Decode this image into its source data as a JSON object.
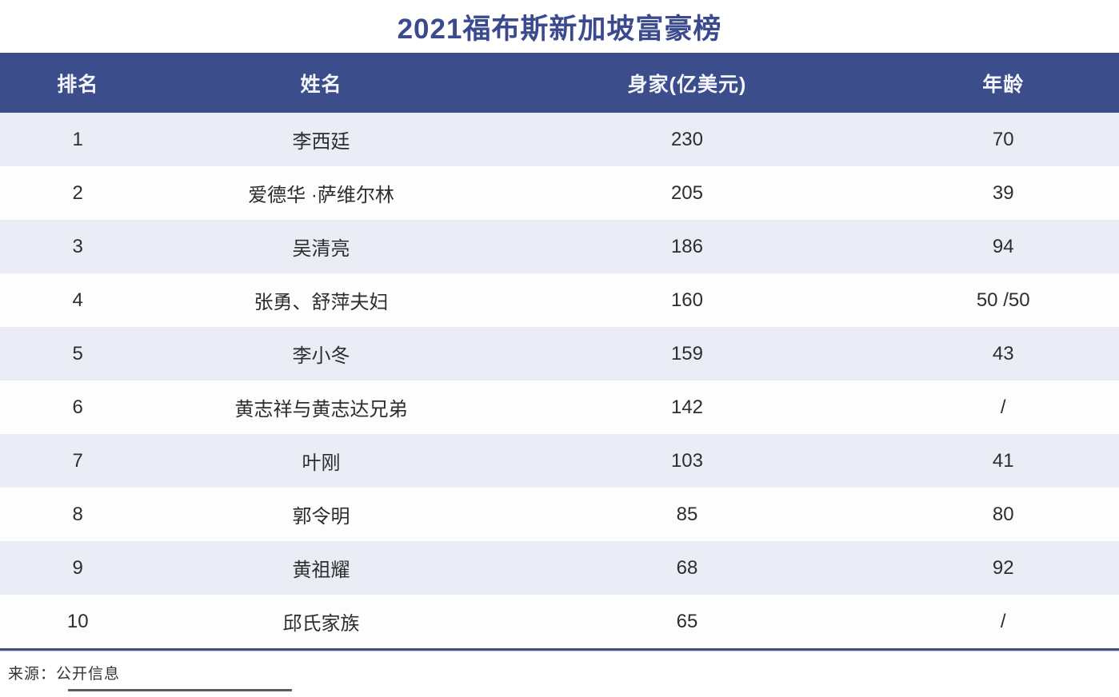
{
  "title": "2021福布斯新加坡富豪榜",
  "table": {
    "headers": [
      "排名",
      "姓名",
      "身家(亿美元)",
      "年龄"
    ],
    "rows": [
      {
        "rank": "1",
        "name": "李西廷",
        "wealth": "230",
        "age": "70"
      },
      {
        "rank": "2",
        "name": "爱德华 ·萨维尔林",
        "wealth": "205",
        "age": "39"
      },
      {
        "rank": "3",
        "name": "吴清亮",
        "wealth": "186",
        "age": "94"
      },
      {
        "rank": "4",
        "name": "张勇、舒萍夫妇",
        "wealth": "160",
        "age": "50 /50"
      },
      {
        "rank": "5",
        "name": "李小冬",
        "wealth": "159",
        "age": "43"
      },
      {
        "rank": "6",
        "name": "黄志祥与黄志达兄弟",
        "wealth": "142",
        "age": "/"
      },
      {
        "rank": "7",
        "name": "叶刚",
        "wealth": "103",
        "age": "41"
      },
      {
        "rank": "8",
        "name": "郭令明",
        "wealth": "85",
        "age": "80"
      },
      {
        "rank": "9",
        "name": "黄祖耀",
        "wealth": "68",
        "age": "92"
      },
      {
        "rank": "10",
        "name": "邱氏家族",
        "wealth": "65",
        "age": "/"
      }
    ]
  },
  "source_note": "来源：公开信息",
  "colors": {
    "header_background": "#3c4d8c",
    "header_text": "#f4f6fb",
    "title_text": "#3b4a8e",
    "row_alt_background": "#eaedf6",
    "row_background": "#fdfdfd",
    "body_text": "#2d2d2d",
    "divider": "#4a507e"
  },
  "chart_data": {
    "type": "table",
    "title": "2021福布斯新加坡富豪榜",
    "columns": [
      "排名",
      "姓名",
      "身家(亿美元)",
      "年龄"
    ],
    "rows": [
      [
        "1",
        "李西廷",
        230,
        "70"
      ],
      [
        "2",
        "爱德华 ·萨维尔林",
        205,
        "39"
      ],
      [
        "3",
        "吴清亮",
        186,
        "94"
      ],
      [
        "4",
        "张勇、舒萍夫妇",
        160,
        "50 /50"
      ],
      [
        "5",
        "李小冬",
        159,
        "43"
      ],
      [
        "6",
        "黄志祥与黄志达兄弟",
        142,
        "/"
      ],
      [
        "7",
        "叶刚",
        103,
        "41"
      ],
      [
        "8",
        "郭令明",
        85,
        "80"
      ],
      [
        "9",
        "黄祖耀",
        68,
        "92"
      ],
      [
        "10",
        "邱氏家族",
        65,
        "/"
      ]
    ],
    "source": "来源：公开信息"
  }
}
